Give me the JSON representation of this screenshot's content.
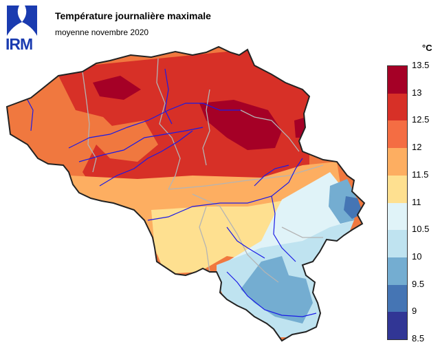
{
  "header": {
    "logo_text": "IRM",
    "title": "Température journalière maximale",
    "subtitle": "moyenne novembre 2020"
  },
  "legend": {
    "unit": "°C",
    "ticks": [
      "13.5",
      "13",
      "12.5",
      "12",
      "11.5",
      "11",
      "10.5",
      "10",
      "9.5",
      "9",
      "8.5"
    ],
    "colors": [
      "#a50026",
      "#d73027",
      "#f46d43",
      "#fdae61",
      "#fee090",
      "#e0f3f8",
      "#bfe3f0",
      "#74add1",
      "#4575b4",
      "#313695"
    ]
  },
  "map": {
    "colors": {
      "background": "#f0783f",
      "hot": "#d73027",
      "hottest": "#a50026",
      "warm": "#fdae61",
      "mild": "#fee090",
      "cool": "#e0f3f8",
      "cold": "#bfe3f0",
      "colder": "#74add1",
      "coldest": "#4575b4",
      "rivers": "#1a1ae6",
      "borders": "#b4b4b4",
      "outline": "#222222"
    }
  }
}
